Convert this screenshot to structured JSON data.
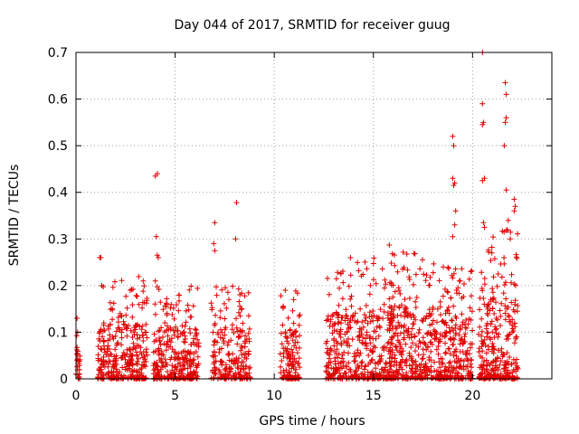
{
  "chart_data": {
    "type": "scatter",
    "title": "Day 044 of 2017, SRMTID for receiver guug",
    "xlabel": "GPS time / hours",
    "ylabel": "SRMTID / TECUs",
    "xlim": [
      0,
      24
    ],
    "ylim": [
      0,
      0.7
    ],
    "xticks": [
      0,
      5,
      10,
      15,
      20
    ],
    "yticks": [
      0,
      0.1,
      0.2,
      0.3,
      0.4,
      0.5,
      0.6,
      0.7
    ],
    "xtick_labels": [
      "0",
      "5",
      "10",
      "15",
      "20"
    ],
    "ytick_labels": [
      "0",
      "0.1",
      "0.2",
      "0.3",
      "0.4",
      "0.5",
      "0.6",
      "0.7"
    ],
    "grid": true,
    "marker": "+",
    "color": "#e00000",
    "clusters": [
      {
        "x_range": [
          0.0,
          0.2
        ],
        "max": 0.14,
        "count": 25
      },
      {
        "x_range": [
          1.1,
          3.6
        ],
        "max": 0.22,
        "count": 330
      },
      {
        "x_range": [
          3.9,
          6.2
        ],
        "max": 0.2,
        "count": 300
      },
      {
        "x_range": [
          6.8,
          8.8
        ],
        "max": 0.2,
        "count": 220
      },
      {
        "x_range": [
          10.3,
          11.3
        ],
        "max": 0.19,
        "count": 130
      },
      {
        "x_range": [
          12.6,
          16.0
        ],
        "max": 0.26,
        "count": 420
      },
      {
        "x_range": [
          15.8,
          18.8
        ],
        "max": 0.28,
        "count": 420
      },
      {
        "x_range": [
          18.8,
          20.0
        ],
        "max": 0.24,
        "count": 170
      },
      {
        "x_range": [
          20.3,
          22.3
        ],
        "max": 0.32,
        "count": 300
      }
    ],
    "points": [
      [
        0.05,
        0.13
      ],
      [
        0.08,
        0.1
      ],
      [
        1.2,
        0.26
      ],
      [
        1.25,
        0.26
      ],
      [
        1.3,
        0.2
      ],
      [
        4.0,
        0.435
      ],
      [
        4.1,
        0.44
      ],
      [
        4.05,
        0.305
      ],
      [
        4.1,
        0.265
      ],
      [
        4.15,
        0.26
      ],
      [
        4.0,
        0.21
      ],
      [
        7.0,
        0.335
      ],
      [
        6.95,
        0.29
      ],
      [
        7.0,
        0.275
      ],
      [
        8.1,
        0.378
      ],
      [
        8.05,
        0.3
      ],
      [
        15.8,
        0.287
      ],
      [
        19.0,
        0.52
      ],
      [
        19.05,
        0.5
      ],
      [
        19.0,
        0.43
      ],
      [
        19.1,
        0.42
      ],
      [
        19.05,
        0.415
      ],
      [
        19.15,
        0.36
      ],
      [
        19.1,
        0.33
      ],
      [
        19.0,
        0.305
      ],
      [
        20.5,
        0.7
      ],
      [
        20.5,
        0.59
      ],
      [
        20.55,
        0.55
      ],
      [
        20.5,
        0.545
      ],
      [
        20.6,
        0.43
      ],
      [
        20.5,
        0.425
      ],
      [
        20.55,
        0.335
      ],
      [
        20.6,
        0.325
      ],
      [
        21.65,
        0.635
      ],
      [
        21.7,
        0.61
      ],
      [
        21.7,
        0.56
      ],
      [
        21.65,
        0.55
      ],
      [
        21.6,
        0.5
      ],
      [
        21.7,
        0.405
      ],
      [
        21.8,
        0.34
      ],
      [
        21.75,
        0.32
      ],
      [
        22.1,
        0.385
      ],
      [
        22.15,
        0.37
      ],
      [
        22.1,
        0.36
      ],
      [
        21.9,
        0.3
      ]
    ]
  }
}
